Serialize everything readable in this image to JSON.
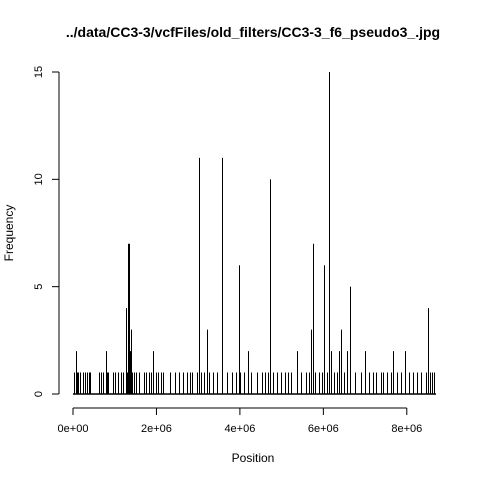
{
  "chart_data": {
    "type": "histogram",
    "title": "../data/CC3-3/vcfFiles/old_filters/CC3-3_f6_pseudo3_.jpg",
    "xlabel": "Position",
    "ylabel": "Frequency",
    "xlim": [
      0,
      8700000
    ],
    "ylim": [
      0,
      15
    ],
    "x_ticks": [
      {
        "value": 0,
        "label": "0e+00"
      },
      {
        "value": 2000000,
        "label": "2e+06"
      },
      {
        "value": 4000000,
        "label": "4e+06"
      },
      {
        "value": 6000000,
        "label": "6e+06"
      },
      {
        "value": 8000000,
        "label": "8e+06"
      }
    ],
    "y_ticks": [
      {
        "value": 0,
        "label": "0"
      },
      {
        "value": 5,
        "label": "5"
      },
      {
        "value": 10,
        "label": "10"
      },
      {
        "value": 15,
        "label": "15"
      }
    ],
    "grid": false,
    "legend": "none",
    "bar_color": "#000000",
    "series": [
      {
        "x": [
          20000,
          60000,
          90000,
          130000,
          160000,
          250000,
          280000,
          330000,
          380000,
          410000,
          620000,
          660000,
          720000,
          790000,
          820000,
          850000,
          950000,
          1000000,
          1080000,
          1150000,
          1200000,
          1260000,
          1300000,
          1320000,
          1350000,
          1370000,
          1400000,
          1420000,
          1450000,
          1510000,
          1580000,
          1700000,
          1760000,
          1820000,
          1870000,
          1920000,
          1980000,
          2040000,
          2100000,
          2160000,
          2330000,
          2450000,
          2530000,
          2640000,
          2730000,
          2800000,
          2850000,
          2970000,
          3010000,
          3060000,
          3130000,
          3200000,
          3250000,
          3350000,
          3460000,
          3560000,
          3680000,
          3820000,
          3900000,
          3980000,
          4010000,
          4100000,
          4200000,
          4260000,
          4400000,
          4520000,
          4600000,
          4670000,
          4730000,
          4800000,
          4880000,
          4990000,
          5080000,
          5160000,
          5230000,
          5360000,
          5470000,
          5580000,
          5650000,
          5700000,
          5760000,
          5800000,
          5890000,
          5960000,
          6020000,
          6090000,
          6140000,
          6180000,
          6260000,
          6330000,
          6380000,
          6430000,
          6490000,
          6560000,
          6640000,
          6750000,
          6900000,
          7000000,
          7100000,
          7200000,
          7270000,
          7380000,
          7440000,
          7530000,
          7630000,
          7680000,
          7760000,
          7870000,
          7950000,
          8050000,
          8160000,
          8240000,
          8340000,
          8450000,
          8500000,
          8550000,
          8600000,
          8650000
        ],
        "y": [
          1,
          2,
          1,
          1,
          1,
          1,
          1,
          1,
          1,
          1,
          1,
          1,
          1,
          2,
          1,
          1,
          1,
          1,
          1,
          1,
          1,
          4,
          1,
          7,
          7,
          2,
          3,
          1,
          1,
          1,
          1,
          1,
          1,
          1,
          1,
          2,
          1,
          1,
          1,
          1,
          1,
          1,
          1,
          1,
          1,
          1,
          1,
          1,
          11,
          1,
          1,
          3,
          1,
          1,
          1,
          11,
          1,
          1,
          1,
          6,
          1,
          1,
          2,
          1,
          1,
          1,
          1,
          1,
          10,
          1,
          1,
          1,
          1,
          1,
          1,
          2,
          1,
          1,
          1,
          3,
          7,
          1,
          1,
          1,
          6,
          1,
          15,
          2,
          1,
          1,
          2,
          3,
          1,
          2,
          5,
          1,
          1,
          2,
          1,
          1,
          1,
          1,
          1,
          1,
          1,
          2,
          1,
          1,
          2,
          1,
          1,
          1,
          1,
          1,
          4,
          1,
          1,
          1
        ]
      }
    ]
  }
}
